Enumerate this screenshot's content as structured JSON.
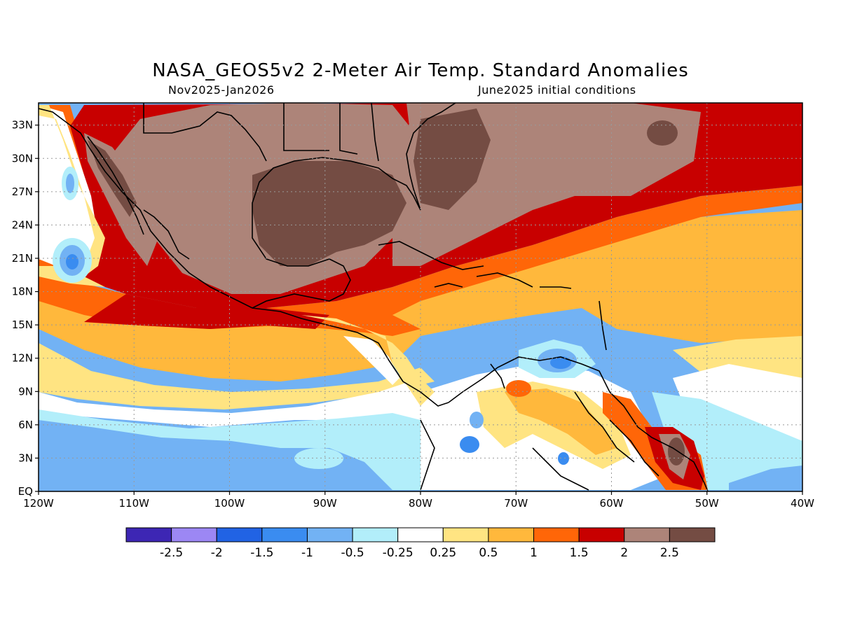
{
  "header": {
    "title": "NASA_GEOS5v2 2-Meter Air Temp. Standard Anomalies",
    "period": "Nov2025-Jan2026",
    "init": "June2025 initial conditions"
  },
  "axes": {
    "lat_labels": [
      "33N",
      "30N",
      "27N",
      "24N",
      "21N",
      "18N",
      "15N",
      "12N",
      "9N",
      "6N",
      "3N",
      "EQ"
    ],
    "lat_values": [
      33,
      30,
      27,
      24,
      21,
      18,
      15,
      12,
      9,
      6,
      3,
      0
    ],
    "lon_labels": [
      "120W",
      "110W",
      "100W",
      "90W",
      "80W",
      "70W",
      "60W",
      "50W",
      "40W"
    ],
    "lon_values": [
      -120,
      -110,
      -100,
      -90,
      -80,
      -70,
      -60,
      -50,
      -40
    ],
    "lon_range": [
      -120,
      -40
    ],
    "lat_range": [
      0,
      35
    ]
  },
  "colorbar": {
    "colors": [
      "#3d26b4",
      "#9c87f4",
      "#2163e4",
      "#3a8cf0",
      "#72b2f4",
      "#b2eefa",
      "#ffffff",
      "#ffe482",
      "#ffb83c",
      "#ff6608",
      "#c80000",
      "#ad8479",
      "#744c43"
    ],
    "labels": [
      "-2.5",
      "-2",
      "-1.5",
      "-1",
      "-0.5",
      "-0.25",
      "0.25",
      "0.5",
      "1",
      "1.5",
      "2",
      "2.5"
    ]
  },
  "colors": {
    "dark_brown": "#744c43",
    "light_brown": "#ad8479",
    "red": "#c80000",
    "orange": "#ff6608",
    "gold": "#ffb83c",
    "light_yellow": "#ffe482",
    "white": "#ffffff",
    "light_cyan": "#b2eefa",
    "light_blue": "#72b2f4",
    "blue": "#3a8cf0"
  }
}
